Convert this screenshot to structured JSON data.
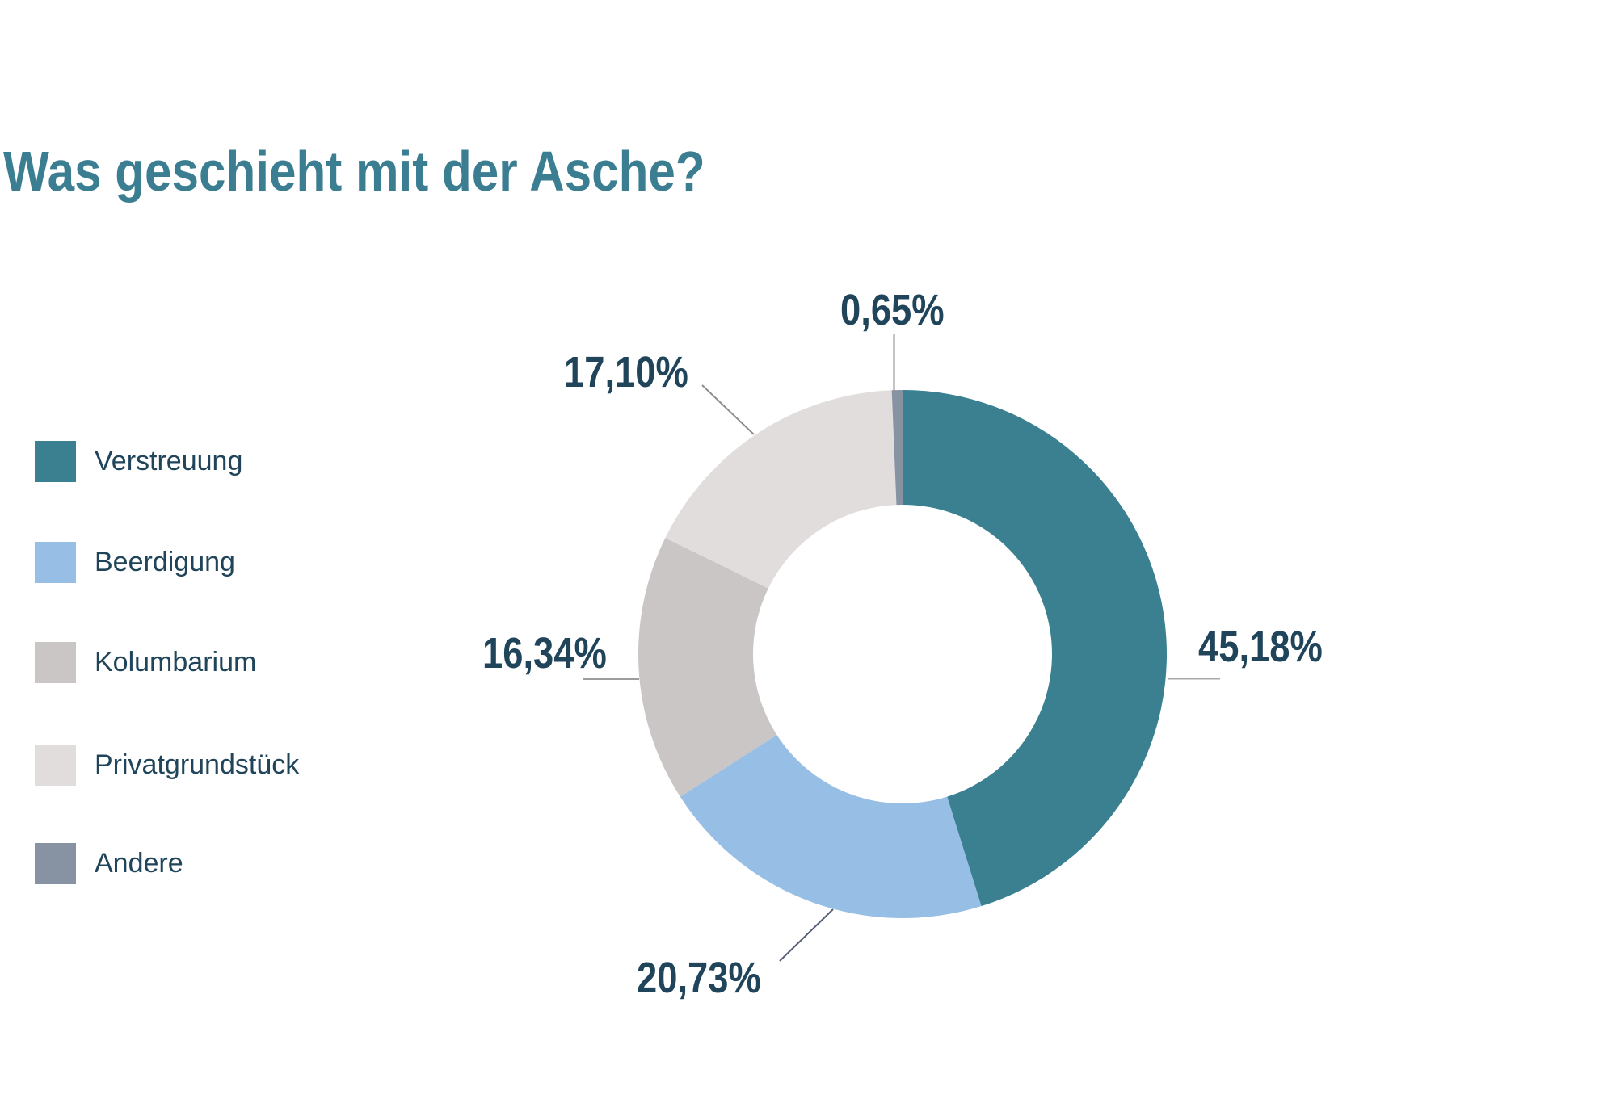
{
  "title": {
    "text": "Was geschieht mit der Asche?",
    "color": "#3B7E92"
  },
  "chart_data": {
    "type": "pie",
    "subtype": "donut",
    "title": "Was geschieht mit der Asche?",
    "categories": [
      "Verstreuung",
      "Beerdigung",
      "Kolumbarium",
      "Privatgrundstück",
      "Andere"
    ],
    "values": [
      45.18,
      20.73,
      16.34,
      17.1,
      0.65
    ],
    "value_labels": [
      "45,18%",
      "20,73%",
      "16,34%",
      "17,10%",
      "0,65%"
    ],
    "colors": [
      "#3A8090",
      "#97BEE5",
      "#C9C6C5",
      "#E1DDDC",
      "#8793A2"
    ],
    "start_angle_deg": 0,
    "direction": "clockwise",
    "donut_hole_ratio": 0.566,
    "legend_position": "left",
    "label_text_color": "#20455B",
    "leader_line_colors": [
      "#A9A9A9",
      "#565F78",
      "#9C9C9C",
      "#8B8E92",
      "#8B8B8B"
    ]
  }
}
